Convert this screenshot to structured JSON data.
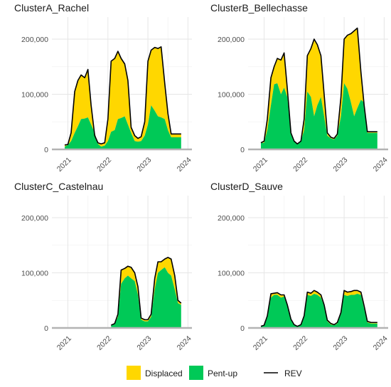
{
  "colors": {
    "displaced": "#FFD700",
    "pentup": "#00C957",
    "rev": "#000000"
  },
  "legend": {
    "items": [
      {
        "key": "displaced",
        "label": "Displaced",
        "kind": "box"
      },
      {
        "key": "pentup",
        "label": "Pent-up",
        "kind": "box"
      },
      {
        "key": "rev",
        "label": "REV",
        "kind": "line"
      }
    ]
  },
  "chart_data": [
    {
      "type": "area",
      "title": "ClusterA_Rachel",
      "ylim": [
        0,
        240000
      ],
      "y_ticks": [
        0,
        100000,
        200000
      ],
      "y_tick_labels": [
        "0",
        "100,000",
        "200,000"
      ],
      "x_ticks": [
        2021,
        2022,
        2023,
        2024
      ],
      "x_tick_labels": [
        "2021",
        "2022",
        "2023",
        "2024"
      ],
      "xlim": [
        2020.6,
        2024.1
      ],
      "x": [
        2020.92,
        2021.0,
        2021.08,
        2021.17,
        2021.25,
        2021.33,
        2021.42,
        2021.5,
        2021.58,
        2021.67,
        2021.75,
        2021.83,
        2021.92,
        2022.0,
        2022.08,
        2022.17,
        2022.25,
        2022.33,
        2022.42,
        2022.5,
        2022.58,
        2022.67,
        2022.75,
        2022.83,
        2022.92,
        2023.0,
        2023.08,
        2023.17,
        2023.25,
        2023.33,
        2023.42,
        2023.5,
        2023.58,
        2023.67,
        2023.75,
        2023.83
      ],
      "series": [
        {
          "name": "Pent-up",
          "values": [
            5000,
            8000,
            15000,
            30000,
            42000,
            55000,
            56000,
            58000,
            45000,
            30000,
            10000,
            5000,
            7000,
            15000,
            32000,
            35000,
            55000,
            57000,
            60000,
            45000,
            30000,
            15000,
            14000,
            15000,
            25000,
            45000,
            80000,
            70000,
            60000,
            58000,
            55000,
            35000,
            22000,
            22000,
            22000,
            22000
          ]
        },
        {
          "name": "REV",
          "values": [
            8000,
            9000,
            30000,
            105000,
            125000,
            135000,
            130000,
            145000,
            80000,
            25000,
            12000,
            10000,
            12000,
            55000,
            160000,
            165000,
            178000,
            165000,
            155000,
            125000,
            40000,
            25000,
            20000,
            23000,
            50000,
            160000,
            180000,
            185000,
            183000,
            186000,
            120000,
            65000,
            28000,
            28000,
            28000,
            28000
          ]
        }
      ]
    },
    {
      "type": "area",
      "title": "ClusterB_Bellechasse",
      "ylim": [
        0,
        240000
      ],
      "y_ticks": [
        0,
        100000,
        200000
      ],
      "y_tick_labels": [
        "0",
        "100,000",
        "200,000"
      ],
      "x_ticks": [
        2021,
        2022,
        2023,
        2024
      ],
      "x_tick_labels": [
        "2021",
        "2022",
        "2023",
        "2024"
      ],
      "xlim": [
        2020.6,
        2024.1
      ],
      "x": [
        2020.92,
        2021.0,
        2021.08,
        2021.17,
        2021.25,
        2021.33,
        2021.42,
        2021.5,
        2021.58,
        2021.67,
        2021.75,
        2021.83,
        2021.92,
        2022.0,
        2022.08,
        2022.17,
        2022.25,
        2022.33,
        2022.42,
        2022.5,
        2022.58,
        2022.67,
        2022.75,
        2022.83,
        2022.92,
        2023.0,
        2023.08,
        2023.17,
        2023.25,
        2023.33,
        2023.42,
        2023.5,
        2023.58,
        2023.67,
        2023.75,
        2023.83
      ],
      "series": [
        {
          "name": "Pent-up",
          "values": [
            12000,
            12000,
            35000,
            80000,
            118000,
            120000,
            100000,
            112000,
            95000,
            30000,
            15000,
            10000,
            15000,
            35000,
            105000,
            95000,
            60000,
            80000,
            95000,
            60000,
            25000,
            20000,
            18000,
            25000,
            60000,
            120000,
            110000,
            85000,
            60000,
            75000,
            90000,
            85000,
            30000,
            30000,
            30000,
            30000
          ]
        },
        {
          "name": "REV",
          "values": [
            12000,
            15000,
            55000,
            130000,
            150000,
            165000,
            162000,
            175000,
            110000,
            30000,
            15000,
            10000,
            15000,
            55000,
            170000,
            183000,
            200000,
            190000,
            170000,
            100000,
            30000,
            22000,
            20000,
            28000,
            95000,
            200000,
            207000,
            210000,
            215000,
            220000,
            140000,
            80000,
            32000,
            32000,
            32000,
            32000
          ]
        }
      ]
    },
    {
      "type": "area",
      "title": "ClusterC_Castelnau",
      "ylim": [
        0,
        240000
      ],
      "y_ticks": [
        0,
        100000,
        200000
      ],
      "y_tick_labels": [
        "0",
        "100,000",
        "200,000"
      ],
      "x_ticks": [
        2021,
        2022,
        2023,
        2024
      ],
      "x_tick_labels": [
        "2021",
        "2022",
        "2023",
        "2024"
      ],
      "xlim": [
        2020.6,
        2024.1
      ],
      "x": [
        2022.08,
        2022.17,
        2022.25,
        2022.33,
        2022.42,
        2022.5,
        2022.58,
        2022.67,
        2022.75,
        2022.83,
        2022.92,
        2023.0,
        2023.08,
        2023.17,
        2023.25,
        2023.33,
        2023.42,
        2023.5,
        2023.58,
        2023.67,
        2023.75,
        2023.83
      ],
      "series": [
        {
          "name": "Pent-up",
          "values": [
            5000,
            7000,
            20000,
            80000,
            90000,
            95000,
            90000,
            85000,
            60000,
            15000,
            12000,
            12000,
            20000,
            70000,
            100000,
            105000,
            110000,
            100000,
            95000,
            70000,
            45000,
            42000
          ]
        },
        {
          "name": "REV",
          "values": [
            5000,
            8000,
            25000,
            105000,
            108000,
            112000,
            110000,
            100000,
            75000,
            18000,
            15000,
            15000,
            25000,
            90000,
            120000,
            120000,
            125000,
            128000,
            125000,
            95000,
            50000,
            45000
          ]
        }
      ]
    },
    {
      "type": "area",
      "title": "ClusterD_Sauve",
      "ylim": [
        0,
        240000
      ],
      "y_ticks": [
        0,
        100000,
        200000
      ],
      "y_tick_labels": [
        "0",
        "100,000",
        "200,000"
      ],
      "x_ticks": [
        2021,
        2022,
        2023,
        2024
      ],
      "x_tick_labels": [
        "2021",
        "2022",
        "2023",
        "2024"
      ],
      "xlim": [
        2020.6,
        2024.1
      ],
      "x": [
        2020.92,
        2021.0,
        2021.08,
        2021.17,
        2021.25,
        2021.33,
        2021.42,
        2021.5,
        2021.58,
        2021.67,
        2021.75,
        2021.83,
        2021.92,
        2022.0,
        2022.08,
        2022.17,
        2022.25,
        2022.33,
        2022.42,
        2022.5,
        2022.58,
        2022.67,
        2022.75,
        2022.83,
        2022.92,
        2023.0,
        2023.08,
        2023.17,
        2023.25,
        2023.33,
        2023.42,
        2023.5,
        2023.58,
        2023.67,
        2023.75,
        2023.83
      ],
      "series": [
        {
          "name": "Pent-up",
          "values": [
            3000,
            4000,
            20000,
            55000,
            60000,
            60000,
            55000,
            57000,
            40000,
            15000,
            5000,
            3000,
            5000,
            20000,
            60000,
            58000,
            62000,
            60000,
            55000,
            40000,
            12000,
            6000,
            5000,
            8000,
            25000,
            60000,
            58000,
            60000,
            60000,
            62000,
            60000,
            35000,
            10000,
            8000,
            8000,
            8000
          ]
        },
        {
          "name": "REV",
          "values": [
            3000,
            5000,
            22000,
            62000,
            63000,
            64000,
            60000,
            60000,
            42000,
            16000,
            6000,
            3000,
            6000,
            22000,
            65000,
            63000,
            68000,
            65000,
            60000,
            42000,
            14000,
            8000,
            6000,
            10000,
            28000,
            68000,
            65000,
            66000,
            68000,
            68000,
            65000,
            40000,
            12000,
            10000,
            10000,
            10000
          ]
        }
      ]
    }
  ]
}
